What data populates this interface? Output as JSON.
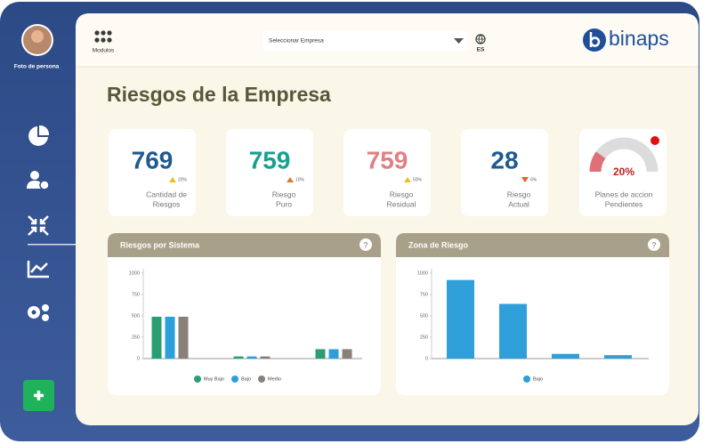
{
  "sidebar": {
    "user": "Foto de persona"
  },
  "header": {
    "modules": "Modulos",
    "select": "Seleccionar Empresa",
    "language": "ES",
    "logo": "binaps"
  },
  "title": "Riesgos de la Empresa",
  "kpis": [
    {
      "value": 769,
      "color": "#1f5a8f",
      "change": "20%",
      "trend": "up",
      "trend_color": "#e8c21c",
      "label": [
        "Cantidad de",
        "Riesgos"
      ]
    },
    {
      "value": 759,
      "color": "#17a08e",
      "change": "10%",
      "trend": "up",
      "trend_color": "#e0782a",
      "label": [
        "Riesgo",
        "Puro"
      ]
    },
    {
      "value": 759,
      "color": "#e08084",
      "change": "50%",
      "trend": "up",
      "trend_color": "#e8c21c",
      "label": [
        "Riesgo",
        "Residual"
      ]
    },
    {
      "value": 28,
      "color": "#1f5a8f",
      "change": "6%",
      "trend": "down",
      "trend_color": "#e0602a",
      "label": [
        "Riesgo",
        "Actual"
      ]
    }
  ],
  "gauge": {
    "value": 20,
    "label": "20%",
    "max": 100,
    "color": "#e07078",
    "title": [
      "Planes de accion",
      "Pendientes"
    ]
  },
  "charts": [
    {
      "type": "bar",
      "title": "Riesgos por Sistema",
      "categories": [
        null,
        null,
        null
      ],
      "series": [
        {
          "name": "Muy Bajo",
          "color": "#2a9d72",
          "values": [
            490,
            25,
            110
          ]
        },
        {
          "name": "Bajo",
          "color": "#2e9fd8",
          "values": [
            490,
            25,
            110
          ]
        },
        {
          "name": "Medio",
          "color": "#8a807a",
          "values": [
            490,
            25,
            110
          ]
        }
      ],
      "ylim": [
        0,
        1000
      ],
      "yticks": [
        0,
        250,
        500,
        750,
        1000
      ]
    },
    {
      "type": "bar",
      "title": "Zona de Riesgo",
      "categories": [
        null,
        null,
        null,
        null
      ],
      "series": [
        {
          "name": "Bajo",
          "color": "#2e9fd8",
          "values": [
            920,
            640,
            55,
            40
          ]
        }
      ],
      "ylim": [
        0,
        1000
      ],
      "yticks": [
        0,
        250,
        500,
        750,
        1000
      ]
    }
  ]
}
